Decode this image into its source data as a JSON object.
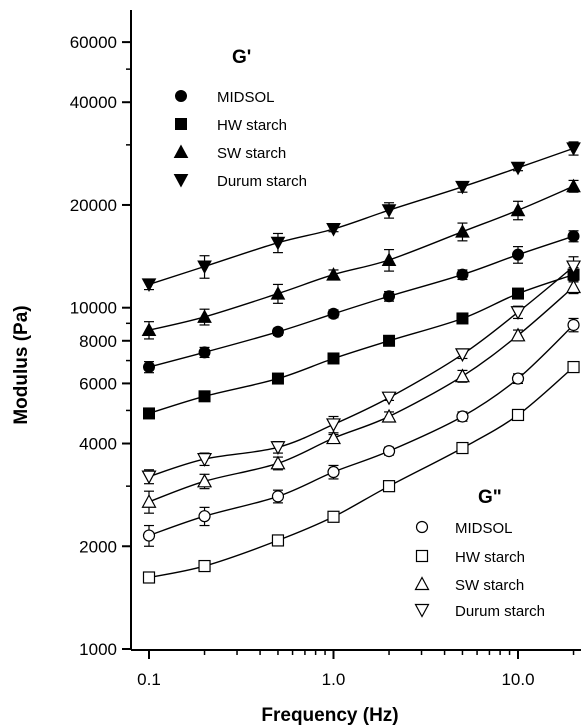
{
  "chart_data": {
    "type": "line",
    "xlabel": "Frequency (Hz)",
    "ylabel": "Modulus (Pa)",
    "xscale": "log",
    "yscale": "log",
    "xlim": [
      0.08,
      25
    ],
    "ylim": [
      1000,
      70000
    ],
    "xticks": [
      {
        "value": 0.1,
        "label": "0.1"
      },
      {
        "value": 1.0,
        "label": "1.0"
      },
      {
        "value": 10.0,
        "label": "10.0"
      }
    ],
    "yticks": [
      {
        "value": 1000,
        "label": "1000"
      },
      {
        "value": 2000,
        "label": "2000"
      },
      {
        "value": 4000,
        "label": "4000"
      },
      {
        "value": 6000,
        "label": "6000"
      },
      {
        "value": 8000,
        "label": "8000"
      },
      {
        "value": 10000,
        "label": "10000"
      },
      {
        "value": 20000,
        "label": "20000"
      },
      {
        "value": 40000,
        "label": "40000"
      },
      {
        "value": 60000,
        "label": "60000"
      }
    ],
    "x": [
      0.1,
      0.2,
      0.5,
      1.0,
      2.0,
      5.0,
      10.0,
      20.0
    ],
    "legends": [
      {
        "title": "G'",
        "position": "top-left",
        "entries": [
          "MIDSOL",
          "HW starch",
          "SW starch",
          "Durum starch"
        ]
      },
      {
        "title": "G\"",
        "position": "bottom-right",
        "entries": [
          "MIDSOL",
          "HW starch",
          "SW starch",
          "Durum starch"
        ]
      }
    ],
    "series": [
      {
        "name": "MIDSOL",
        "group": "G'",
        "marker": "circle",
        "filled": true,
        "values": [
          6700,
          7400,
          8500,
          9600,
          10800,
          12500,
          14300,
          16200
        ],
        "error": [
          250,
          250,
          200,
          250,
          350,
          400,
          800,
          600
        ]
      },
      {
        "name": "HW starch",
        "group": "G'",
        "marker": "square",
        "filled": true,
        "values": [
          4900,
          5500,
          6200,
          7100,
          8000,
          9300,
          11000,
          12500
        ],
        "error": [
          150,
          150,
          150,
          200,
          200,
          250,
          300,
          600
        ]
      },
      {
        "name": "SW starch",
        "group": "G'",
        "marker": "triangle-up",
        "filled": true,
        "values": [
          8600,
          9400,
          11000,
          12500,
          13800,
          16700,
          19300,
          22700
        ],
        "error": [
          500,
          500,
          700,
          400,
          1000,
          1000,
          1200,
          900
        ]
      },
      {
        "name": "Durum starch",
        "group": "G'",
        "marker": "triangle-down",
        "filled": true,
        "values": [
          11700,
          13200,
          15500,
          17000,
          19300,
          22600,
          25700,
          29300
        ],
        "error": [
          400,
          1000,
          1000,
          300,
          1000,
          800,
          500,
          1300
        ]
      },
      {
        "name": "MIDSOL",
        "group": "G\"",
        "marker": "circle",
        "filled": false,
        "values": [
          2150,
          2450,
          2800,
          3300,
          3800,
          4800,
          6200,
          8900
        ],
        "error": [
          150,
          150,
          120,
          150,
          100,
          150,
          200,
          400
        ]
      },
      {
        "name": "HW starch",
        "group": "G\"",
        "marker": "square",
        "filled": false,
        "values": [
          1620,
          1750,
          2080,
          2440,
          3000,
          3880,
          4850,
          6700
        ],
        "error": [
          20,
          20,
          20,
          30,
          30,
          30,
          40,
          50
        ]
      },
      {
        "name": "SW starch",
        "group": "G\"",
        "marker": "triangle-up",
        "filled": false,
        "values": [
          2700,
          3100,
          3500,
          4150,
          4800,
          6300,
          8300,
          11500
        ],
        "error": [
          200,
          150,
          150,
          100,
          150,
          250,
          300,
          500
        ]
      },
      {
        "name": "Durum starch",
        "group": "G\"",
        "marker": "triangle-down",
        "filled": false,
        "values": [
          3200,
          3600,
          3900,
          4550,
          5450,
          7300,
          9700,
          13200
        ],
        "error": [
          150,
          150,
          150,
          250,
          100,
          200,
          400,
          900
        ]
      }
    ]
  }
}
